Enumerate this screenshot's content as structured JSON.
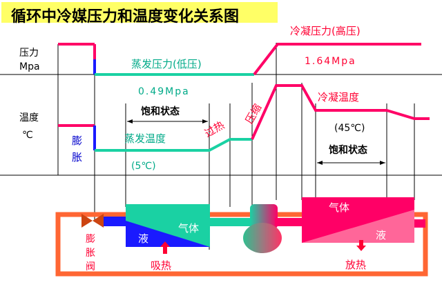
{
  "title": "循环中冷媒压力和温度变化关系图",
  "axis_labels": {
    "pressure_line1": "压力",
    "pressure_line2": "Mpa",
    "temperature_line1": "温度",
    "temperature_line2": "℃"
  },
  "pressure": {
    "condensing_label": "冷凝压力(高压)",
    "condensing_value": "1.64Mpa",
    "evaporating_label": "蒸发压力(低压)",
    "evaporating_value": "0.49Mpa"
  },
  "temperature": {
    "saturated_state_left": "饱和状态",
    "evaporating_temp_label": "蒸发温度",
    "evaporating_temp_value": "(5℃)",
    "condensing_temp_label": "冷凝温度",
    "condensing_temp_value": "(45℃)",
    "saturated_state_right": "饱和状态"
  },
  "processes": {
    "expansion": [
      "膨",
      "胀"
    ],
    "superheat": [
      "过",
      "热"
    ],
    "compression": [
      "压",
      "缩"
    ]
  },
  "components": {
    "expansion_valve": [
      "膨",
      "胀",
      "阀"
    ],
    "evaporator_gas": "气体",
    "evaporator_liquid": "液",
    "condenser_gas": "气体",
    "condenser_liquid": "液",
    "absorb_heat": "吸热",
    "release_heat": "放热"
  },
  "colors": {
    "title_bg": "#ffff66",
    "high_side": "#ff0066",
    "low_side": "#1ad1a3",
    "expansion_blue": "#1a1aff",
    "pipe": "#ff6633",
    "text_red": "#ff0033",
    "text_green": "#00aa88",
    "text_blue": "#0000cc"
  }
}
